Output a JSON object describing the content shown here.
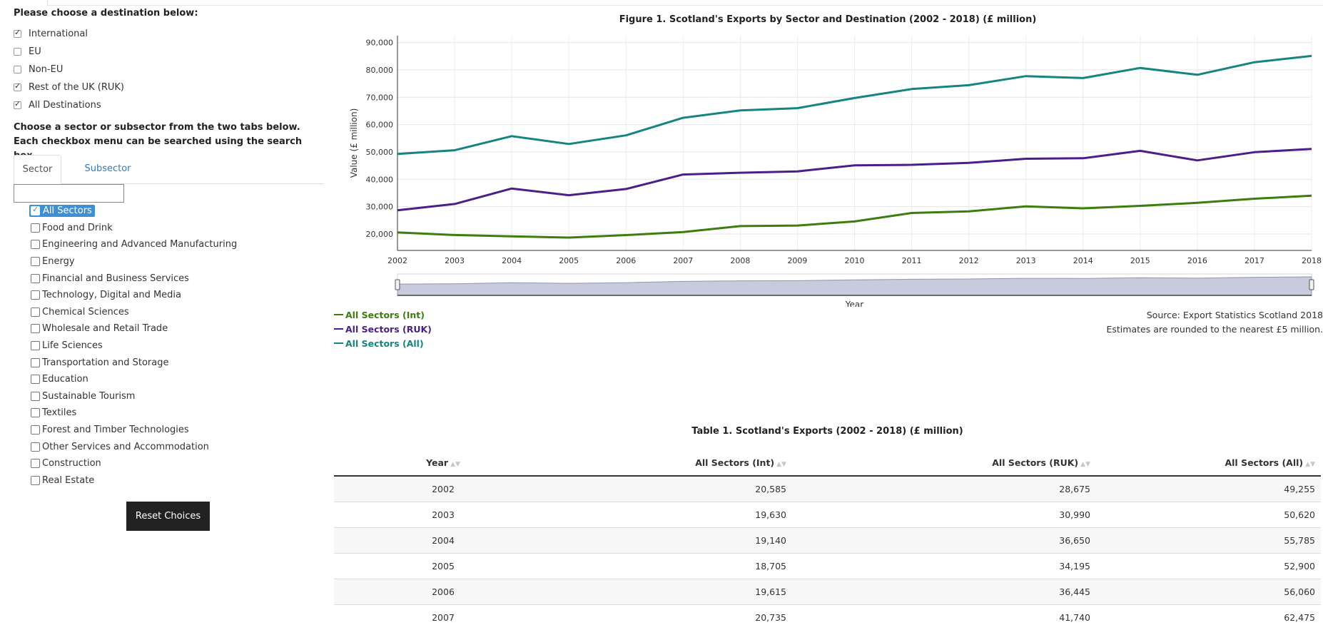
{
  "destinations": {
    "heading": "Please choose a destination below:",
    "options": [
      {
        "label": "International",
        "checked": true
      },
      {
        "label": "EU",
        "checked": false
      },
      {
        "label": "Non-EU",
        "checked": false
      },
      {
        "label": "Rest of the UK (RUK)",
        "checked": true
      },
      {
        "label": "All Destinations",
        "checked": true
      }
    ]
  },
  "sector_panel": {
    "instructions": "Choose a sector or subsector from the two tabs below. Each checkbox menu can be searched using the search box.",
    "tabs": [
      {
        "label": "Sector",
        "active": true
      },
      {
        "label": "Subsector",
        "active": false
      }
    ],
    "search_value": "",
    "items": [
      {
        "label": "All Sectors",
        "checked": true
      },
      {
        "label": "Food and Drink",
        "checked": false
      },
      {
        "label": "Engineering and Advanced Manufacturing",
        "checked": false
      },
      {
        "label": "Energy",
        "checked": false
      },
      {
        "label": "Financial and Business Services",
        "checked": false
      },
      {
        "label": "Technology, Digital and Media",
        "checked": false
      },
      {
        "label": "Chemical Sciences",
        "checked": false
      },
      {
        "label": "Wholesale and Retail Trade",
        "checked": false
      },
      {
        "label": "Life Sciences",
        "checked": false
      },
      {
        "label": "Transportation and Storage",
        "checked": false
      },
      {
        "label": "Education",
        "checked": false
      },
      {
        "label": "Sustainable Tourism",
        "checked": false
      },
      {
        "label": "Textiles",
        "checked": false
      },
      {
        "label": "Forest and Timber Technologies",
        "checked": false
      },
      {
        "label": "Other Services and Accommodation",
        "checked": false
      },
      {
        "label": "Construction",
        "checked": false
      },
      {
        "label": "Real Estate",
        "checked": false
      }
    ],
    "reset_label": "Reset Choices"
  },
  "chart_data": {
    "type": "line",
    "title": "Figure 1. Scotland's Exports by Sector and Destination (2002 - 2018) (£ million)",
    "xlabel": "Year",
    "ylabel": "Value (£ million)",
    "x": [
      2002,
      2003,
      2004,
      2005,
      2006,
      2007,
      2008,
      2009,
      2010,
      2011,
      2012,
      2013,
      2014,
      2015,
      2016,
      2017,
      2018
    ],
    "x_tick_labels": [
      "2002",
      "2003",
      "2004",
      "2005",
      "2006",
      "2007",
      "2008",
      "2009",
      "2010",
      "2011",
      "2012",
      "2013",
      "2014",
      "2015",
      "2016",
      "2017",
      "2018"
    ],
    "y_ticks": [
      20000,
      30000,
      40000,
      50000,
      60000,
      70000,
      80000,
      90000
    ],
    "y_tick_labels": [
      "20,000",
      "30,000",
      "40,000",
      "50,000",
      "60,000",
      "70,000",
      "80,000",
      "90,000"
    ],
    "ylim": [
      14000,
      92500
    ],
    "grid": true,
    "legend_position": "bottom-left",
    "series": [
      {
        "name": "All Sectors (Int)",
        "color": "#3c7d0e",
        "values": [
          20585,
          19630,
          19140,
          18705,
          19615,
          20735,
          22900,
          23100,
          24600,
          27700,
          28300,
          30100,
          29400,
          30300,
          31400,
          32900,
          34000
        ]
      },
      {
        "name": "All Sectors (RUK)",
        "color": "#4b1e8c",
        "values": [
          28675,
          30990,
          36650,
          34195,
          36445,
          41740,
          42400,
          42900,
          45100,
          45300,
          46000,
          47500,
          47700,
          50400,
          46900,
          49900,
          51100
        ]
      },
      {
        "name": "All Sectors (All)",
        "color": "#14857f",
        "values": [
          49255,
          50620,
          55785,
          52900,
          56060,
          62475,
          65200,
          66000,
          69700,
          73000,
          74400,
          77700,
          77000,
          80700,
          78200,
          82800,
          85100
        ]
      }
    ]
  },
  "chart_notes": {
    "source": "Source: Export Statistics Scotland 2018",
    "rounding": "Estimates are rounded to the nearest £5 million."
  },
  "table": {
    "title": "Table 1. Scotland's Exports (2002 - 2018) (£ million)",
    "headers": [
      "Year",
      "All Sectors (Int)",
      "All Sectors (RUK)",
      "All Sectors (All)"
    ],
    "rows": [
      [
        "2002",
        "20,585",
        "28,675",
        "49,255"
      ],
      [
        "2003",
        "19,630",
        "30,990",
        "50,620"
      ],
      [
        "2004",
        "19,140",
        "36,650",
        "55,785"
      ],
      [
        "2005",
        "18,705",
        "34,195",
        "52,900"
      ],
      [
        "2006",
        "19,615",
        "36,445",
        "56,060"
      ],
      [
        "2007",
        "20,735",
        "41,740",
        "62,475"
      ]
    ]
  }
}
